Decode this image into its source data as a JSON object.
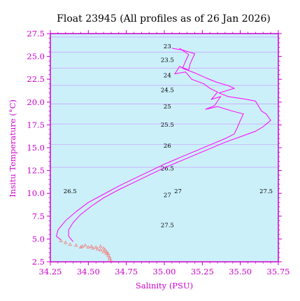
{
  "chart_data": {
    "type": "line",
    "title": "Float 23945  (All profiles as of 26 Jan 2026)",
    "xlabel": "Salinity (PSU)",
    "ylabel": "Insitu Temperature (°C)",
    "xlim": [
      34.25,
      35.75
    ],
    "ylim": [
      2.5,
      27.5
    ],
    "xticks": [
      "34.25",
      "34.50",
      "34.75",
      "35.00",
      "35.25",
      "35.50",
      "35.75"
    ],
    "yticks": [
      "2.5",
      "5.0",
      "7.5",
      "10.0",
      "12.5",
      "15.0",
      "17.5",
      "20.0",
      "22.5",
      "25.0",
      "27.5"
    ],
    "background": "#ccf0fa",
    "axis_color": "#cc00cc",
    "profile_color": "#ff00ff",
    "deep_point_color": "#f08080",
    "isopycnal_color": "#c8a0ff",
    "grid": false,
    "isopycnal_labels": [
      {
        "text": "23",
        "s": 35.02,
        "t": 25.9
      },
      {
        "text": "23.5",
        "s": 35.02,
        "t": 24.4
      },
      {
        "text": "24",
        "s": 35.02,
        "t": 22.7
      },
      {
        "text": "24.5",
        "s": 35.02,
        "t": 21.1
      },
      {
        "text": "25",
        "s": 35.02,
        "t": 19.3
      },
      {
        "text": "25.5",
        "s": 35.02,
        "t": 17.3
      },
      {
        "text": "26",
        "s": 35.02,
        "t": 15.0
      },
      {
        "text": "26.5",
        "s": 35.02,
        "t": 12.5
      },
      {
        "text": "26.5",
        "s": 34.38,
        "t": 10.0
      },
      {
        "text": "27",
        "s": 35.02,
        "t": 9.6
      },
      {
        "text": "27",
        "s": 35.09,
        "t": 10.0
      },
      {
        "text": "27.5",
        "s": 35.67,
        "t": 10.0
      },
      {
        "text": "27.5",
        "s": 35.02,
        "t": 6.3
      }
    ],
    "series": [
      {
        "points": [
          [
            35.05,
            25.9
          ],
          [
            35.12,
            25.7
          ],
          [
            35.2,
            25.3
          ],
          [
            35.17,
            24.2
          ],
          [
            35.16,
            23.5
          ],
          [
            35.1,
            23.9
          ],
          [
            35.07,
            23.1
          ],
          [
            35.14,
            23.3
          ],
          [
            35.18,
            22.5
          ],
          [
            35.26,
            22.0
          ],
          [
            35.3,
            21.5
          ],
          [
            35.35,
            21.1
          ],
          [
            35.31,
            20.3
          ],
          [
            35.37,
            20.6
          ],
          [
            35.33,
            19.6
          ],
          [
            35.27,
            19.2
          ],
          [
            35.35,
            19.5
          ],
          [
            35.45,
            19.0
          ],
          [
            35.52,
            18.7
          ],
          [
            35.5,
            18.0
          ],
          [
            35.48,
            17.2
          ],
          [
            35.46,
            16.5
          ],
          [
            35.4,
            16.0
          ],
          [
            35.3,
            15.3
          ],
          [
            35.2,
            14.6
          ],
          [
            35.1,
            13.9
          ],
          [
            35.0,
            13.2
          ],
          [
            34.9,
            12.4
          ],
          [
            34.8,
            11.6
          ],
          [
            34.7,
            10.8
          ],
          [
            34.6,
            9.9
          ],
          [
            34.5,
            9.0
          ],
          [
            34.42,
            8.0
          ],
          [
            34.35,
            7.0
          ],
          [
            34.3,
            6.0
          ],
          [
            34.29,
            5.3
          ],
          [
            34.32,
            4.9
          ]
        ]
      },
      {
        "points": [
          [
            35.1,
            25.9
          ],
          [
            35.16,
            25.2
          ],
          [
            35.14,
            24.5
          ],
          [
            35.12,
            23.7
          ],
          [
            35.2,
            23.2
          ],
          [
            35.28,
            22.6
          ],
          [
            35.34,
            22.2
          ],
          [
            35.42,
            21.8
          ],
          [
            35.46,
            21.5
          ],
          [
            35.36,
            21.0
          ],
          [
            35.42,
            20.6
          ],
          [
            35.54,
            20.3
          ],
          [
            35.6,
            20.1
          ],
          [
            35.64,
            19.0
          ],
          [
            35.67,
            18.7
          ],
          [
            35.7,
            18.0
          ],
          [
            35.65,
            17.3
          ],
          [
            35.6,
            16.8
          ],
          [
            35.5,
            16.2
          ],
          [
            35.4,
            15.6
          ],
          [
            35.3,
            14.9
          ],
          [
            35.2,
            14.2
          ],
          [
            35.1,
            13.5
          ],
          [
            35.0,
            12.8
          ],
          [
            34.9,
            12.0
          ],
          [
            34.8,
            11.2
          ],
          [
            34.7,
            10.4
          ],
          [
            34.6,
            9.5
          ],
          [
            34.52,
            8.6
          ],
          [
            34.45,
            7.7
          ],
          [
            34.4,
            6.8
          ],
          [
            34.37,
            6.0
          ],
          [
            34.37,
            5.3
          ],
          [
            34.4,
            4.7
          ]
        ]
      }
    ],
    "deep_points": [
      [
        34.32,
        4.8
      ],
      [
        34.35,
        4.6
      ],
      [
        34.38,
        4.4
      ],
      [
        34.42,
        4.3
      ],
      [
        34.46,
        4.2
      ],
      [
        34.5,
        4.1
      ],
      [
        34.53,
        4.0
      ],
      [
        34.56,
        3.9
      ],
      [
        34.58,
        3.8
      ],
      [
        34.6,
        3.6
      ],
      [
        34.62,
        3.4
      ],
      [
        34.63,
        3.2
      ],
      [
        34.64,
        3.0
      ],
      [
        34.64,
        2.8
      ],
      [
        34.65,
        2.6
      ],
      [
        34.45,
        4.1
      ],
      [
        34.48,
        4.3
      ],
      [
        34.52,
        4.2
      ],
      [
        34.55,
        4.1
      ],
      [
        34.58,
        4.2
      ],
      [
        34.6,
        4.0
      ],
      [
        34.61,
        3.8
      ],
      [
        34.62,
        3.6
      ],
      [
        34.63,
        3.4
      ]
    ]
  }
}
